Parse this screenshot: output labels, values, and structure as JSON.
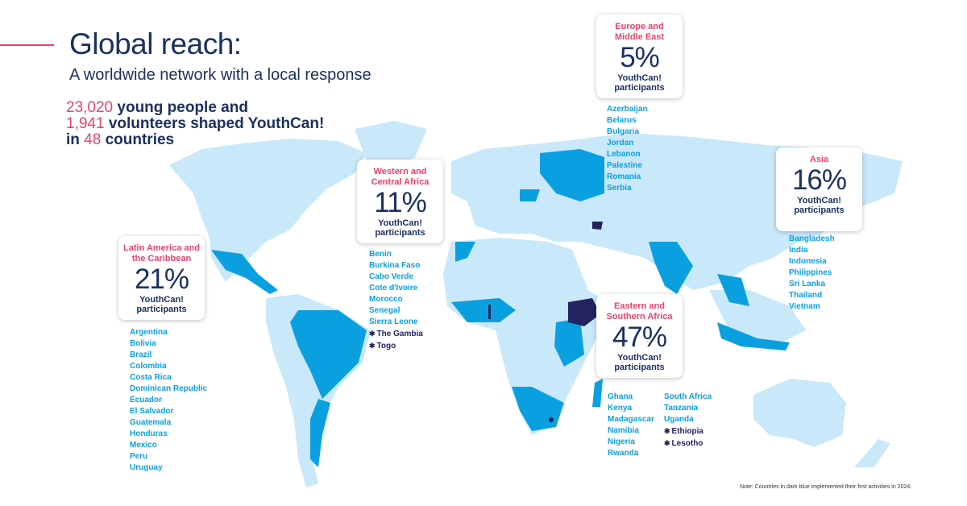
{
  "header": {
    "title": "Global reach:",
    "subtitle": "A worldwide network with a local response"
  },
  "stats": {
    "young_people": "23,020",
    "line1_text": " young people and",
    "volunteers": "1,941",
    "line2_text": " volunteers shaped YouthCan!",
    "line3_pre": "in ",
    "countries": "48",
    "line3_text": " countries"
  },
  "colors": {
    "map_base": "#c9e8fa",
    "active": "#0aa0e0",
    "new_2024": "#23235f",
    "accent": "#e8436a",
    "navy": "#1c3160"
  },
  "regions": [
    {
      "title": "Europe and Middle East",
      "percent": "5%",
      "label": "YouthCan! participants",
      "countries": [
        "Azerbaijan",
        "Belarus",
        "Bulgaria",
        "Jordan",
        "Lebanon",
        "Palestine",
        "Romania",
        "Serbia"
      ],
      "new_countries": []
    },
    {
      "title": "Asia",
      "percent": "16%",
      "label": "YouthCan! participants",
      "countries": [
        "Bangladesh",
        "India",
        "Indonesia",
        "Philippines",
        "Sri Lanka",
        "Thailand",
        "Vietnam"
      ],
      "new_countries": []
    },
    {
      "title": "Western and Central Africa",
      "percent": "11%",
      "label": "YouthCan! participants",
      "countries": [
        "Benin",
        "Burkina Faso",
        "Cabo Verde",
        "Cote d'Ivoire",
        "Morocco",
        "Senegal",
        "Sierra Leone"
      ],
      "new_countries": [
        "The Gambia",
        "Togo"
      ]
    },
    {
      "title": "Latin America and the Caribbean",
      "percent": "21%",
      "label": "YouthCan! participants",
      "countries": [
        "Argentina",
        "Bolivia",
        "Brazil",
        "Colombia",
        "Costa Rica",
        "Dominican Republic",
        "Ecuador",
        "El Salvador",
        "Guatemala",
        "Honduras",
        "Mexico",
        "Peru",
        "Uruguay"
      ],
      "new_countries": []
    },
    {
      "title": "Eastern and Southern Africa",
      "percent": "47%",
      "label": "YouthCan! participants",
      "countries": [
        "Ghana",
        "Kenya",
        "Madagascar",
        "Namibia",
        "Nigeria",
        "Rwanda",
        "South Africa",
        "Tanzania",
        "Uganda"
      ],
      "new_countries": [
        "Ethiopia",
        "Lesotho"
      ]
    }
  ],
  "note": "Note: Countries in dark blue implemented their first activities in 2024."
}
